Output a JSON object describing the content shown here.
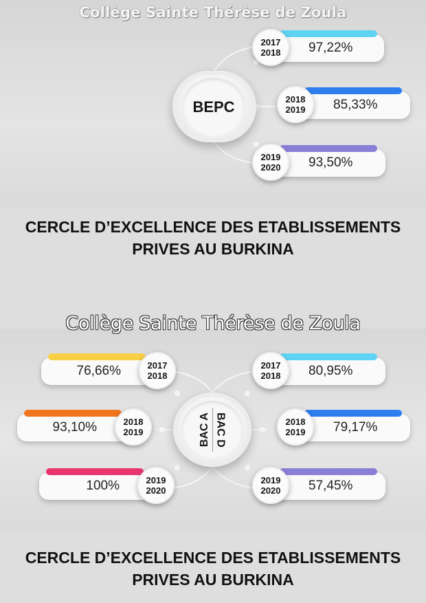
{
  "top_section": {
    "school_title": "Collège Sainte Thérèse de Zoula",
    "hub_label": "BEPC",
    "results": [
      {
        "year_start": "2017",
        "year_end": "2018",
        "rate": "97,22%",
        "accent": "#5fd3f3"
      },
      {
        "year_start": "2018",
        "year_end": "2019",
        "rate": "85,33%",
        "accent": "#2f7ef0"
      },
      {
        "year_start": "2019",
        "year_end": "2020",
        "rate": "93,50%",
        "accent": "#8a7fd6"
      }
    ],
    "headline_line1": "CERCLE D’EXCELLENCE DES ETABLISSEMENTS",
    "headline_line2": "PRIVES AU BURKINA"
  },
  "bottom_section": {
    "school_title": "Collège Sainte Thérèse de Zoula",
    "hub_label_left": "BAC A",
    "hub_label_right": "BAC D",
    "bac_a_results": [
      {
        "year_start": "2017",
        "year_end": "2018",
        "rate": "76,66%",
        "accent": "#f7d046"
      },
      {
        "year_start": "2018",
        "year_end": "2019",
        "rate": "93,10%",
        "accent": "#f2741e"
      },
      {
        "year_start": "2019",
        "year_end": "2020",
        "rate": "100%",
        "accent": "#e8356e"
      }
    ],
    "bac_d_results": [
      {
        "year_start": "2017",
        "year_end": "2018",
        "rate": "80,95%",
        "accent": "#5fd3f3"
      },
      {
        "year_start": "2018",
        "year_end": "2019",
        "rate": "79,17%",
        "accent": "#2f7ef0"
      },
      {
        "year_start": "2019",
        "year_end": "2020",
        "rate": "57,45%",
        "accent": "#8a7fd6"
      }
    ],
    "headline_line1": "CERCLE D’EXCELLENCE DES ETABLISSEMENTS",
    "headline_line2": "PRIVES AU BURKINA"
  }
}
